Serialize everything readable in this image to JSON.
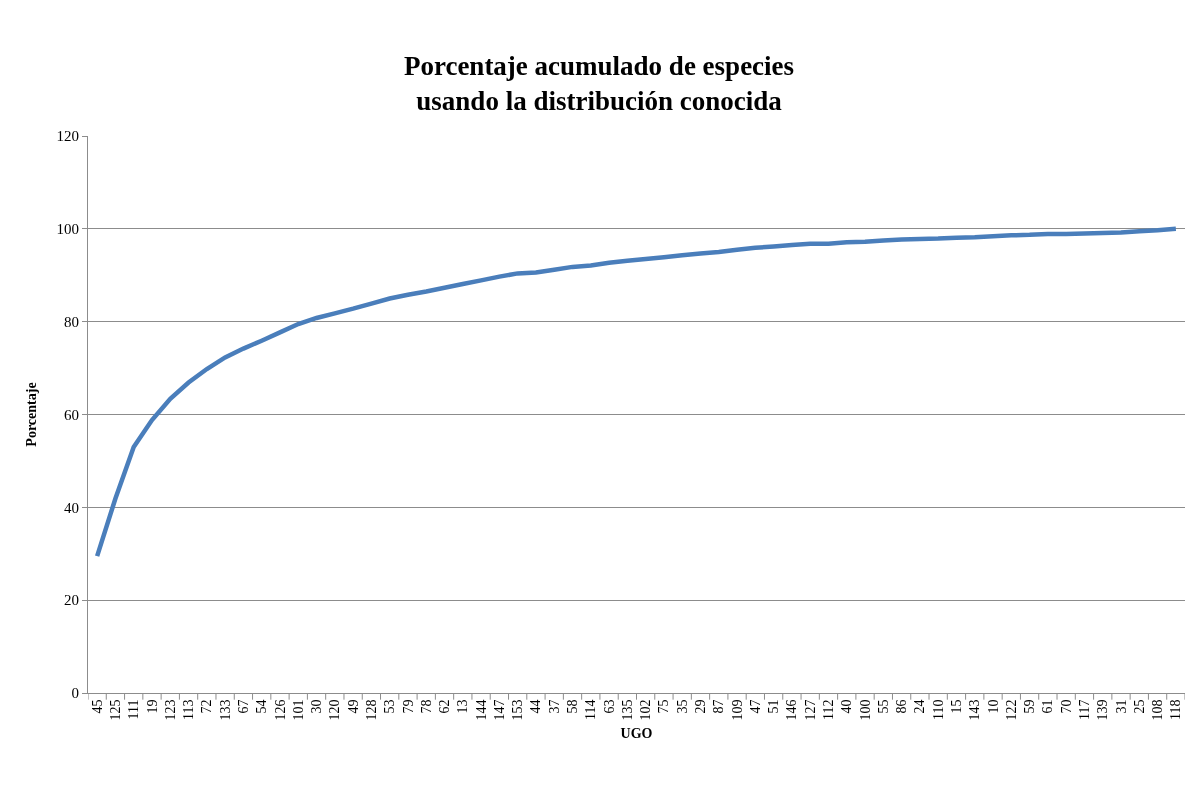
{
  "chart_data": {
    "type": "line",
    "title": "Porcentaje acumulado de especies\nusando la distribución conocida",
    "xlabel": "UGO",
    "ylabel": "Porcentaje",
    "categories": [
      "45",
      "125",
      "111",
      "19",
      "123",
      "113",
      "72",
      "133",
      "67",
      "54",
      "126",
      "101",
      "30",
      "120",
      "49",
      "128",
      "53",
      "79",
      "78",
      "62",
      "13",
      "144",
      "147",
      "153",
      "44",
      "37",
      "58",
      "114",
      "63",
      "135",
      "102",
      "75",
      "35",
      "29",
      "87",
      "109",
      "47",
      "51",
      "146",
      "127",
      "112",
      "40",
      "100",
      "55",
      "86",
      "24",
      "110",
      "15",
      "143",
      "10",
      "122",
      "59",
      "61",
      "70",
      "117",
      "139",
      "31",
      "25",
      "108",
      "118"
    ],
    "series": [
      {
        "color": "#4a7ebb",
        "values": [
          29.5,
          41.9,
          53.0,
          58.8,
          63.4,
          66.9,
          69.8,
          72.3,
          74.2,
          75.9,
          77.7,
          79.5,
          80.8,
          81.8,
          82.8,
          83.9,
          85.0,
          85.8,
          86.5,
          87.3,
          88.1,
          88.9,
          89.7,
          90.4,
          90.6,
          91.2,
          91.8,
          92.1,
          92.7,
          93.1,
          93.5,
          93.9,
          94.3,
          94.7,
          95.0,
          95.5,
          95.9,
          96.2,
          96.5,
          96.8,
          96.8,
          97.1,
          97.2,
          97.5,
          97.7,
          97.8,
          97.9,
          98.1,
          98.2,
          98.4,
          98.6,
          98.7,
          98.9,
          98.9,
          99.0,
          99.1,
          99.2,
          99.5,
          99.7,
          100.0
        ]
      }
    ],
    "ylim": [
      0,
      120
    ],
    "yticks": [
      0,
      20,
      40,
      60,
      80,
      100,
      120
    ],
    "grid": "y",
    "marker": "none",
    "line_style": "solid"
  }
}
